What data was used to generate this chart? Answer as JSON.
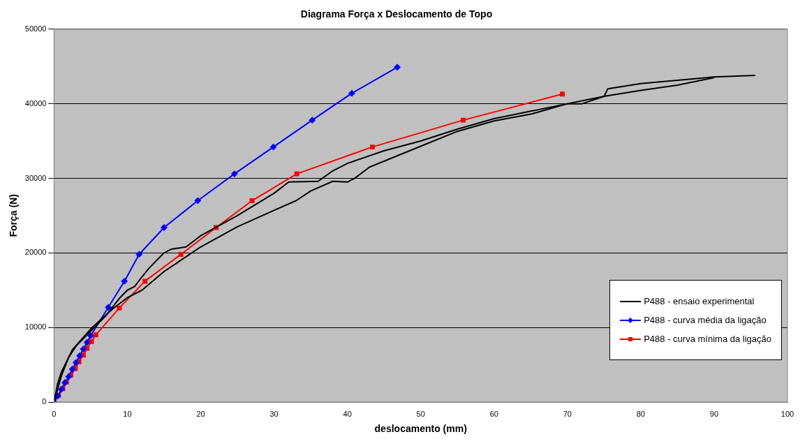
{
  "chart_data": {
    "type": "line",
    "title": "Diagrama Força x Deslocamento de Topo",
    "xlabel": "deslocamento (mm)",
    "ylabel": "Força (N)",
    "xlim": [
      0,
      100
    ],
    "xticks": [
      0,
      10,
      20,
      30,
      40,
      50,
      60,
      70,
      80,
      90,
      100
    ],
    "ylim": [
      0,
      50000
    ],
    "yticks": [
      0,
      10000,
      20000,
      30000,
      40000,
      50000
    ],
    "grid": "y",
    "legend": "bottom right",
    "series": [
      {
        "name": "P488 - ensaio experimental",
        "color": "#000000",
        "marker": "none",
        "x": [
          0,
          0.5,
          1,
          2,
          3,
          5,
          7,
          9,
          10,
          11,
          12,
          13,
          15,
          16,
          18,
          20,
          25,
          30,
          32,
          36,
          38,
          40,
          45,
          50,
          55,
          60,
          65,
          70,
          72,
          75,
          80,
          85,
          90
        ],
        "values": [
          0,
          2500,
          4000,
          6000,
          7500,
          9500,
          11500,
          14000,
          15000,
          15500,
          16800,
          18000,
          20000,
          20500,
          20800,
          22300,
          25000,
          28000,
          29500,
          29600,
          31000,
          32000,
          33700,
          35000,
          36600,
          38000,
          39000,
          40000,
          40000,
          41000,
          41800,
          42500,
          43500
        ]
      },
      {
        "color": "#000000",
        "marker": "none",
        "x": [
          0,
          1,
          2,
          2.5,
          5,
          8,
          10,
          12,
          15,
          20,
          25,
          30,
          33,
          35,
          38,
          40,
          41,
          43,
          50,
          55,
          60,
          65,
          70,
          75,
          75.5,
          80,
          90,
          95.6
        ],
        "values": [
          0,
          3500,
          6000,
          7000,
          9800,
          12500,
          14000,
          15000,
          17500,
          20800,
          23500,
          25700,
          27000,
          28300,
          29600,
          29500,
          30000,
          31500,
          34300,
          36300,
          37700,
          38600,
          40000,
          41000,
          42000,
          42700,
          43600,
          43800
        ]
      },
      {
        "name": "P488 - curva média da ligação",
        "color": "#0000ff",
        "marker": "diamond",
        "x": [
          0,
          0.5,
          1,
          1.5,
          2,
          2.5,
          3,
          3.5,
          4,
          4.5,
          5,
          7.4,
          9.6,
          11.6,
          15,
          19.6,
          24.6,
          29.9,
          35.2,
          40.6,
          46.8
        ],
        "values": [
          0,
          800,
          1700,
          2600,
          3400,
          4400,
          5300,
          6200,
          7100,
          8000,
          8900,
          12700,
          16200,
          19800,
          23400,
          27000,
          30600,
          34200,
          37800,
          41400,
          44900
        ]
      },
      {
        "name": "P488 - curva mínima da ligação",
        "color": "#ff0000",
        "marker": "square",
        "x": [
          0,
          0.6,
          1.2,
          1.7,
          2.3,
          2.9,
          3.4,
          4,
          4.5,
          5.1,
          5.7,
          8.9,
          12.4,
          17.3,
          22.1,
          27,
          33.1,
          43.4,
          55.8,
          69.3
        ],
        "values": [
          0,
          900,
          1800,
          2700,
          3600,
          4500,
          5400,
          6300,
          7200,
          8100,
          9000,
          12600,
          16200,
          19800,
          23400,
          27000,
          30600,
          34200,
          37800,
          41300
        ]
      }
    ]
  }
}
